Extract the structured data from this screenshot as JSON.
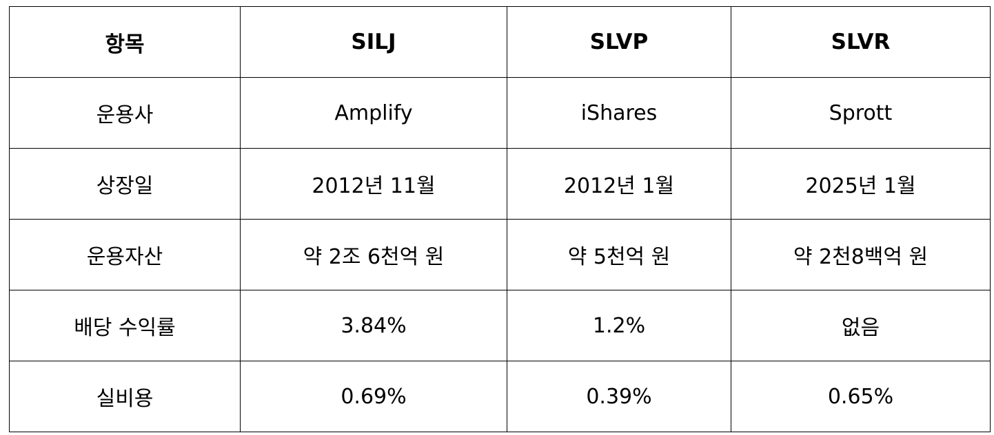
{
  "table": {
    "headers": [
      "항목",
      "SILJ",
      "SLVP",
      "SLVR"
    ],
    "rows": [
      {
        "label": "운용사",
        "values": [
          "Amplify",
          "iShares",
          "Sprott"
        ]
      },
      {
        "label": "상장일",
        "values": [
          "2012년 11월",
          "2012년 1월",
          "2025년 1월"
        ]
      },
      {
        "label": "운용자산",
        "values": [
          "약 2조 6천억 원",
          "약 5천억 원",
          "약 2천8백억 원"
        ]
      },
      {
        "label": "배당 수익률",
        "values": [
          "3.84%",
          "1.2%",
          "없음"
        ]
      },
      {
        "label": "실비용",
        "values": [
          "0.69%",
          "0.39%",
          "0.65%"
        ]
      }
    ]
  }
}
